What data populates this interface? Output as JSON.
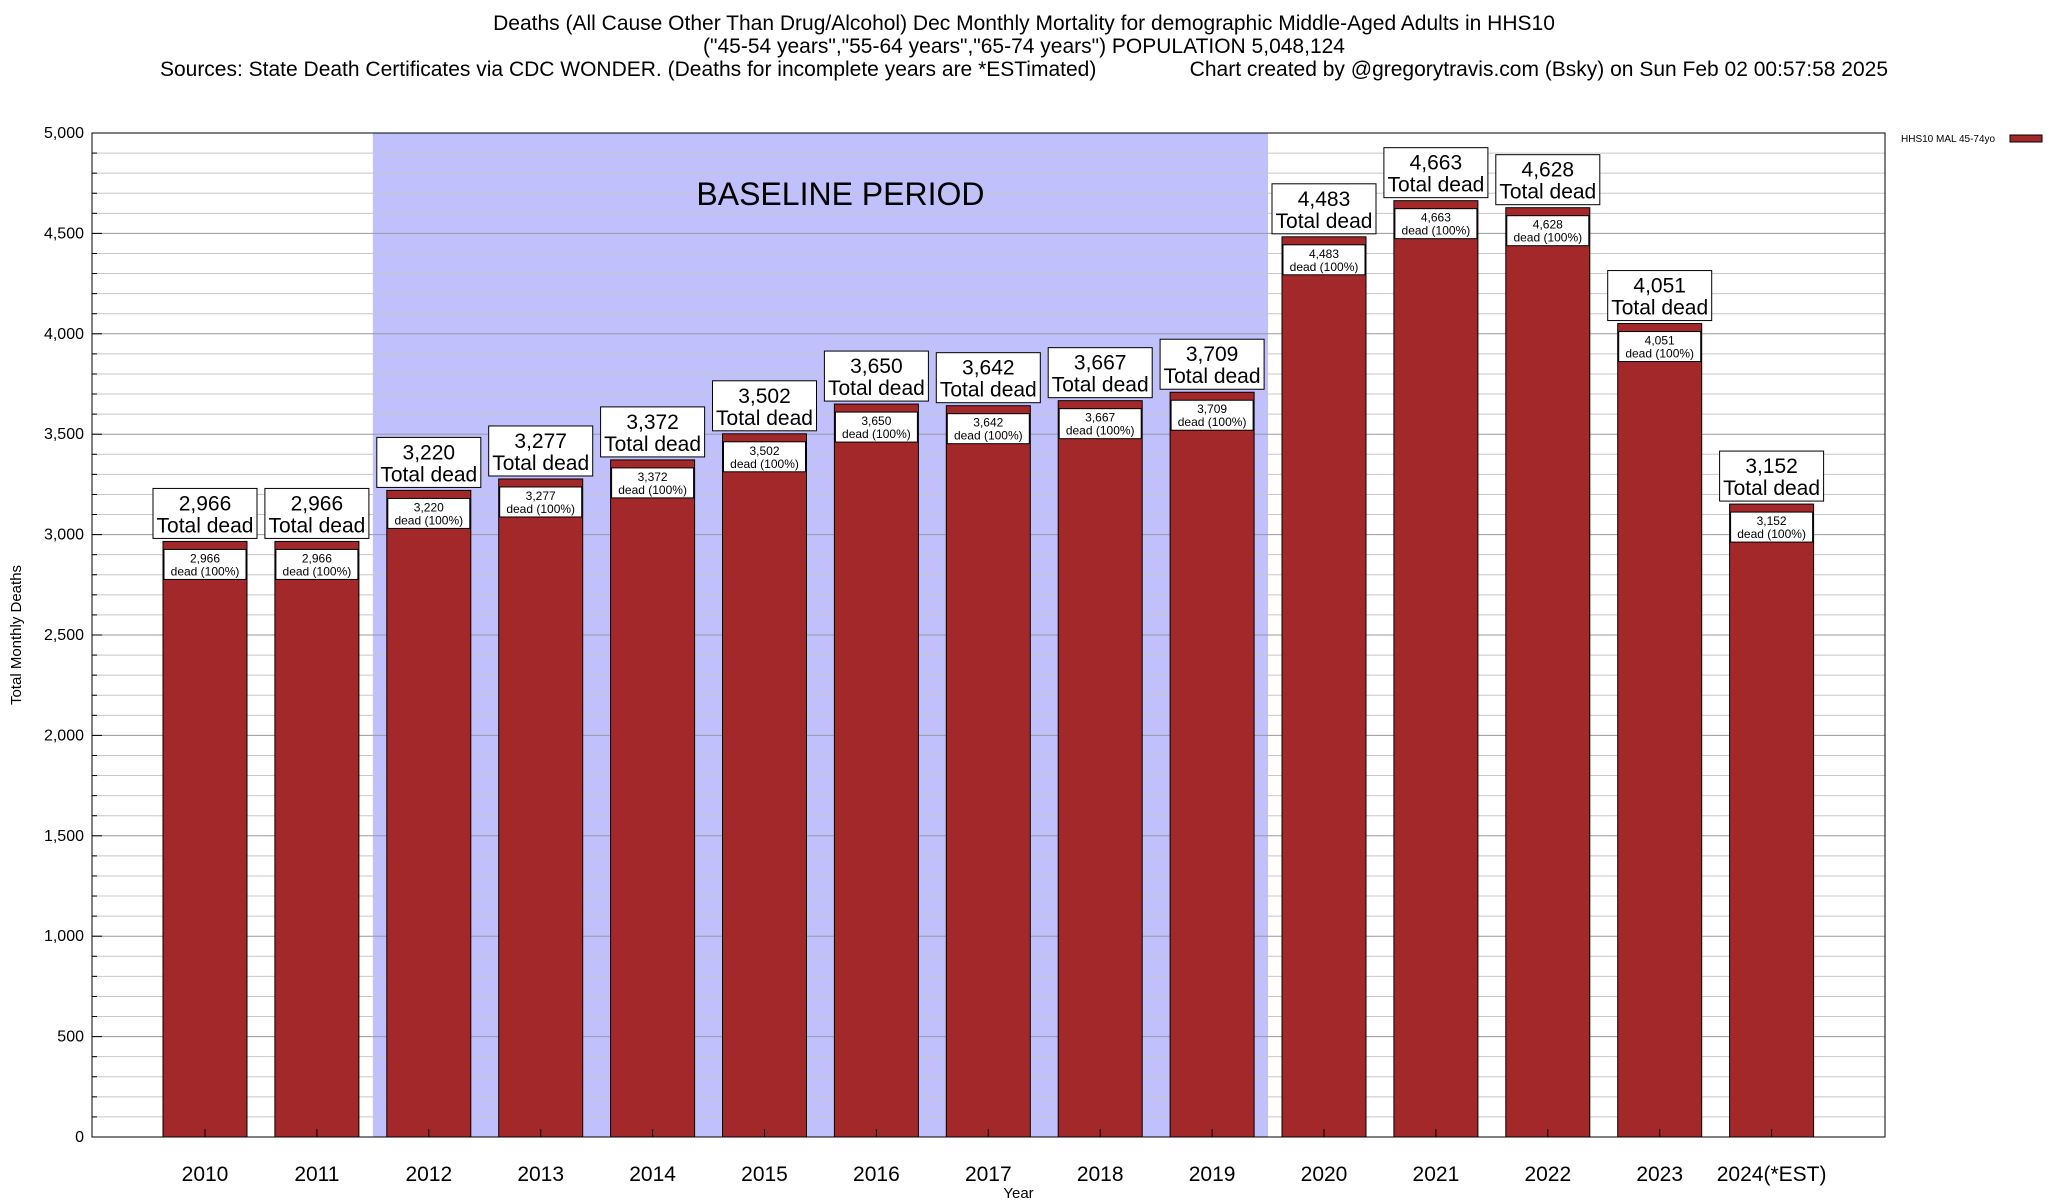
{
  "header": {
    "title_line1": "Deaths (All Cause Other Than Drug/Alcohol) Dec Monthly Mortality for demographic Middle-Aged Adults in HHS10",
    "title_line2": "(\"45-54 years\",\"55-64 years\",\"65-74 years\") POPULATION 5,048,124",
    "title_line3": "Sources: State Death Certificates via CDC WONDER. (Deaths for incomplete years are *ESTimated)                Chart created by @gregorytravis.com (Bsky) on Sun Feb 02 00:57:58 2025"
  },
  "chart_data": {
    "type": "bar",
    "xlabel": "Year",
    "ylabel": "Total Monthly Deaths",
    "ylim": [
      0,
      5000
    ],
    "y_ticks": [
      0,
      500,
      1000,
      1500,
      2000,
      2500,
      3000,
      3500,
      4000,
      4500,
      5000
    ],
    "y_tick_labels": [
      "0",
      "500",
      "1,000",
      "1,500",
      "2,000",
      "2,500",
      "3,000",
      "3,500",
      "4,000",
      "4,500",
      "5,000"
    ],
    "categories": [
      "2010",
      "2011",
      "2012",
      "2013",
      "2014",
      "2015",
      "2016",
      "2017",
      "2018",
      "2019",
      "2020",
      "2021",
      "2022",
      "2023",
      "2024(*EST)"
    ],
    "series": [
      {
        "name": "HHS10 MAL 45-74yo",
        "color": "#a3282a",
        "values": [
          2966,
          2966,
          3220,
          3277,
          3372,
          3502,
          3650,
          3642,
          3667,
          3709,
          4483,
          4663,
          4628,
          4051,
          3152
        ]
      }
    ],
    "value_labels": [
      "2,966",
      "2,966",
      "3,220",
      "3,277",
      "3,372",
      "3,502",
      "3,650",
      "3,642",
      "3,667",
      "3,709",
      "4,483",
      "4,663",
      "4,628",
      "4,051",
      "3,152"
    ],
    "top_label_suffix": "Total dead",
    "inner_label_suffix": "dead (100%)",
    "baseline": {
      "label": "BASELINE PERIOD",
      "start": "2012",
      "end": "2019",
      "color": "#c0c0fc"
    },
    "legend_position": "top-right",
    "grid": true
  }
}
